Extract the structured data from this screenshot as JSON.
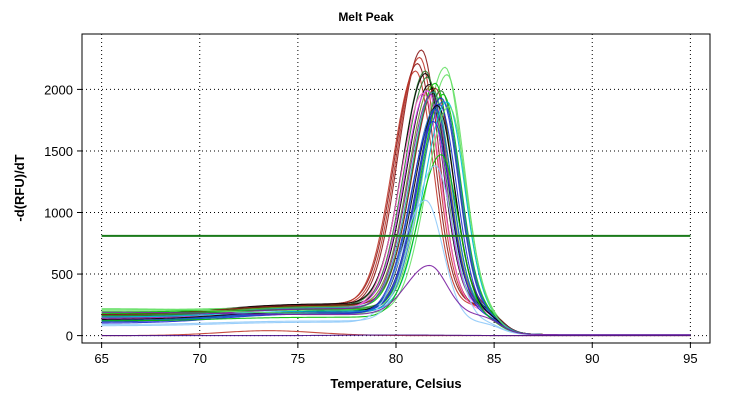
{
  "chart_data": {
    "type": "line",
    "title": "Melt Peak",
    "xlabel": "Temperature, Celsius",
    "ylabel": "-d(RFU)/dT",
    "xlim": [
      64,
      96
    ],
    "ylim": [
      -60,
      2450
    ],
    "x_ticks": [
      "65",
      "70",
      "75",
      "80",
      "85",
      "90",
      "95"
    ],
    "y_ticks": [
      "0",
      "500",
      "1000",
      "1500",
      "2000"
    ],
    "grid": true,
    "legend": "none",
    "threshold": {
      "value": 810,
      "x_range": [
        65,
        95
      ],
      "color": "#1a7a1a"
    },
    "series_colors": [
      "#8b1a1a",
      "#c0392b",
      "#2e7d32",
      "#00c000",
      "#66e066",
      "#1f2ccc",
      "#1565c0",
      "#90caf9",
      "#000000",
      "#7b1fa2",
      "#e040fb",
      "#26a69a",
      "#ff66cc",
      "#6b8e23",
      "#4a148c",
      "#00bcd4"
    ],
    "series": [
      {
        "color": "#8b1a1a",
        "peak_x": 81.3,
        "peak_y": 2320,
        "base_start": 150,
        "hump": 240
      },
      {
        "color": "#c0392b",
        "peak_x": 81.2,
        "peak_y": 2260,
        "base_start": 140,
        "hump": 250
      },
      {
        "color": "#8b1a1a",
        "peak_x": 81.1,
        "peak_y": 2210,
        "base_start": 160,
        "hump": 260
      },
      {
        "color": "#c0392b",
        "peak_x": 81.0,
        "peak_y": 2150,
        "base_start": 150,
        "hump": 250
      },
      {
        "color": "#2e7d32",
        "peak_x": 81.5,
        "peak_y": 2150,
        "base_start": 160,
        "hump": 250
      },
      {
        "color": "#000000",
        "peak_x": 81.5,
        "peak_y": 2130,
        "base_start": 170,
        "hump": 260
      },
      {
        "color": "#2e7d32",
        "peak_x": 81.6,
        "peak_y": 2100,
        "base_start": 160,
        "hump": 240
      },
      {
        "color": "#66e066",
        "peak_x": 82.5,
        "peak_y": 2180,
        "base_start": 210,
        "hump": 230
      },
      {
        "color": "#66e066",
        "peak_x": 82.6,
        "peak_y": 2120,
        "base_start": 200,
        "hump": 220
      },
      {
        "color": "#00c000",
        "peak_x": 82.0,
        "peak_y": 2050,
        "base_start": 190,
        "hump": 230
      },
      {
        "color": "#000000",
        "peak_x": 81.7,
        "peak_y": 2040,
        "base_start": 150,
        "hump": 250
      },
      {
        "color": "#6b8e23",
        "peak_x": 81.8,
        "peak_y": 2030,
        "base_start": 160,
        "hump": 240
      },
      {
        "color": "#8b1a1a",
        "peak_x": 82.0,
        "peak_y": 2010,
        "base_start": 170,
        "hump": 250
      },
      {
        "color": "#e040fb",
        "peak_x": 81.6,
        "peak_y": 1990,
        "base_start": 130,
        "hump": 230
      },
      {
        "color": "#ff66cc",
        "peak_x": 81.4,
        "peak_y": 1970,
        "base_start": 140,
        "hump": 220
      },
      {
        "color": "#26a69a",
        "peak_x": 81.9,
        "peak_y": 1980,
        "base_start": 150,
        "hump": 230
      },
      {
        "color": "#2e7d32",
        "peak_x": 82.3,
        "peak_y": 1990,
        "base_start": 160,
        "hump": 220
      },
      {
        "color": "#00c000",
        "peak_x": 82.4,
        "peak_y": 1960,
        "base_start": 180,
        "hump": 210
      },
      {
        "color": "#7b1fa2",
        "peak_x": 81.8,
        "peak_y": 1960,
        "base_start": 140,
        "hump": 220
      },
      {
        "color": "#1f2ccc",
        "peak_x": 82.3,
        "peak_y": 1930,
        "base_start": 120,
        "hump": 200
      },
      {
        "color": "#1565c0",
        "peak_x": 82.4,
        "peak_y": 1900,
        "base_start": 120,
        "hump": 190
      },
      {
        "color": "#1f2ccc",
        "peak_x": 82.2,
        "peak_y": 1880,
        "base_start": 110,
        "hump": 190
      },
      {
        "color": "#000000",
        "peak_x": 82.1,
        "peak_y": 1870,
        "base_start": 130,
        "hump": 200
      },
      {
        "color": "#1565c0",
        "peak_x": 82.0,
        "peak_y": 1840,
        "base_start": 120,
        "hump": 180
      },
      {
        "color": "#00bcd4",
        "peak_x": 82.6,
        "peak_y": 1900,
        "base_start": 150,
        "hump": 200
      },
      {
        "color": "#66e066",
        "peak_x": 82.7,
        "peak_y": 1860,
        "base_start": 220,
        "hump": 180
      },
      {
        "color": "#1f2ccc",
        "peak_x": 81.9,
        "peak_y": 1740,
        "base_start": 100,
        "hump": 180
      },
      {
        "color": "#00c000",
        "peak_x": 82.3,
        "peak_y": 1470,
        "base_start": 120,
        "hump": 150
      },
      {
        "color": "#90caf9",
        "peak_x": 82.0,
        "peak_y": 1380,
        "base_start": 90,
        "hump": 120
      },
      {
        "color": "#90caf9",
        "peak_x": 81.5,
        "peak_y": 1100,
        "base_start": 80,
        "hump": 110
      },
      {
        "color": "#7b1fa2",
        "peak_x": 81.7,
        "peak_y": 570,
        "base_start": 190,
        "hump": 170
      },
      {
        "color": "#c0392b",
        "peak_x": 73.5,
        "peak_y": 40,
        "base_start": 0,
        "hump": 0,
        "flat": true
      },
      {
        "color": "#4a148c",
        "peak_x": 80.0,
        "peak_y": 5,
        "base_start": 0,
        "hump": 0,
        "flat": true
      }
    ]
  }
}
